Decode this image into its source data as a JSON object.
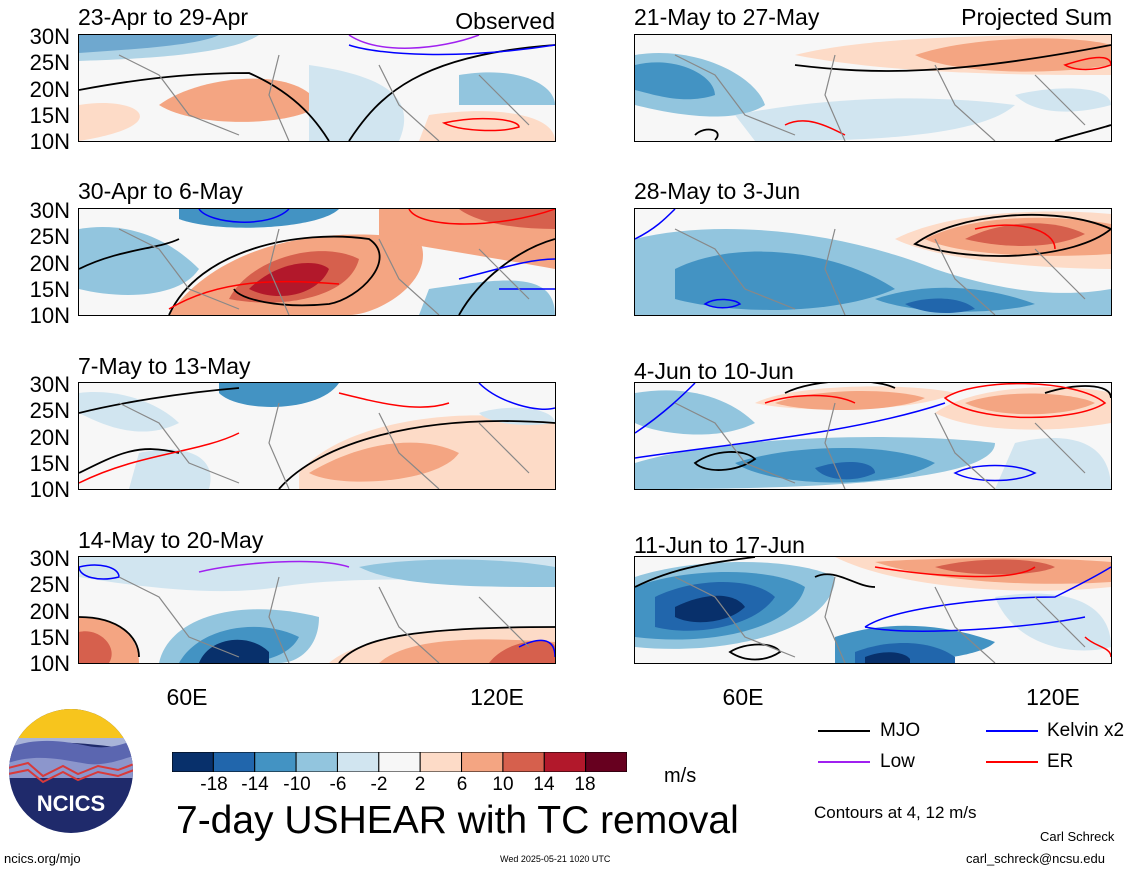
{
  "panels": [
    {
      "title": "23-Apr to 29-Apr",
      "tag": "Observed"
    },
    {
      "title": "21-May to 27-May",
      "tag": "Projected Sum"
    },
    {
      "title": "30-Apr to 6-May",
      "tag": ""
    },
    {
      "title": "28-May to 3-Jun",
      "tag": ""
    },
    {
      "title": "7-May to 13-May",
      "tag": ""
    },
    {
      "title": "4-Jun to 10-Jun",
      "tag": ""
    },
    {
      "title": "14-May to 20-May",
      "tag": ""
    },
    {
      "title": "11-Jun to 17-Jun",
      "tag": ""
    }
  ],
  "lat_labels": [
    "30N",
    "25N",
    "20N",
    "15N",
    "10N"
  ],
  "lon_labels": [
    "60E",
    "120E"
  ],
  "legend": {
    "mjo": "MJO",
    "kelvin": "Kelvin x2",
    "low": "Low",
    "er": "ER",
    "colors": {
      "mjo": "#000000",
      "kelvin": "#0000ff",
      "low": "#a020f0",
      "er": "#ff0000"
    }
  },
  "colorbar": {
    "labels": [
      "-18",
      "-14",
      "-10",
      "-6",
      "-2",
      "2",
      "6",
      "10",
      "14",
      "18"
    ],
    "colors": [
      "#08306b",
      "#2166ac",
      "#4393c3",
      "#92c5de",
      "#d1e5f0",
      "#f7f7f7",
      "#fddbc7",
      "#f4a582",
      "#d6604d",
      "#b2182b",
      "#67001f"
    ],
    "units": "m/s"
  },
  "main_title": "7-day USHEAR with TC removal",
  "contours_note": "Contours at 4, 12 m/s",
  "logo_text": "NCICS",
  "website": "ncics.org/mjo",
  "timestamp": "Wed 2025-05-21 1020 UTC",
  "author": "Carl Schreck",
  "email": "carl_schreck@ncsu.edu"
}
